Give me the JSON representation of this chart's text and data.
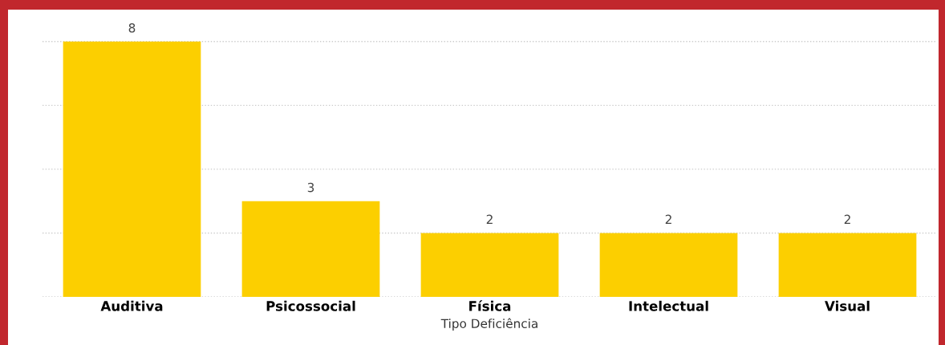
{
  "chart_data": {
    "type": "bar",
    "xlabel": "Tipo Deficiência",
    "categories": [
      "Auditiva",
      "Psicossocial",
      "Física",
      "Intelectual",
      "Visual"
    ],
    "values": [
      8,
      3,
      2,
      2,
      2
    ],
    "color": "#fccf00",
    "yticks": [
      {
        "value": 0,
        "label": null
      },
      {
        "value": 2,
        "label": null
      },
      {
        "value": 4,
        "label": null
      },
      {
        "value": 6,
        "label": null
      },
      {
        "value": 8,
        "label": null
      }
    ],
    "grid": "y",
    "tick_labels": "x",
    "data_labels": true
  }
}
